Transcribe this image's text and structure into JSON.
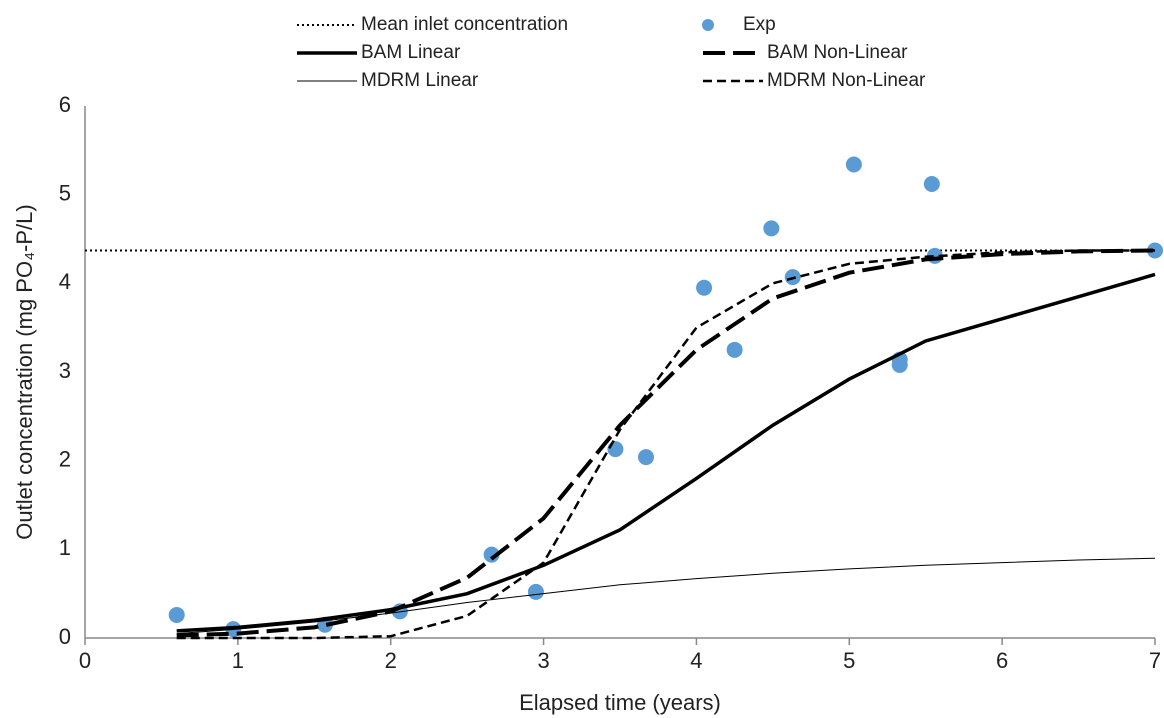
{
  "chart_data": {
    "type": "line",
    "x_label": "Elapsed time (years)",
    "y_label": "Outlet concentration (mg PO₄-P/L)",
    "xlim": [
      0,
      7
    ],
    "xticks": [
      0,
      1,
      2,
      3,
      4,
      5,
      6,
      7
    ],
    "ylim": [
      0,
      6
    ],
    "yticks": [
      0,
      1,
      2,
      3,
      4,
      5,
      6
    ],
    "grid": false,
    "legend": "top",
    "series": [
      {
        "name": "Mean inlet concentration",
        "color": "#000000",
        "dash": "dotted",
        "line_width": 2,
        "x": [
          0,
          7
        ],
        "values": [
          4.37,
          4.37
        ]
      },
      {
        "name": "Exp",
        "color": "#5b9bd5",
        "marker": "circle",
        "x": [
          0.6,
          0.97,
          1.57,
          2.06,
          2.66,
          2.95,
          3.47,
          3.67,
          4.05,
          4.25,
          4.49,
          4.63,
          5.03,
          5.33,
          5.33,
          5.54,
          5.56,
          7.0
        ],
        "values": [
          0.26,
          0.1,
          0.15,
          0.3,
          0.94,
          0.52,
          2.13,
          2.04,
          3.95,
          3.25,
          4.62,
          4.07,
          5.34,
          3.14,
          3.08,
          5.12,
          4.31,
          4.37
        ]
      },
      {
        "name": "BAM Linear",
        "color": "#000000",
        "dash": "solid",
        "line_width": 3.5,
        "x": [
          0.6,
          1,
          1.5,
          2,
          2.5,
          3,
          3.5,
          4,
          4.5,
          5,
          5.5,
          6,
          6.5,
          7
        ],
        "values": [
          0.08,
          0.12,
          0.2,
          0.32,
          0.5,
          0.82,
          1.22,
          1.8,
          2.4,
          2.92,
          3.35,
          3.6,
          3.85,
          4.1
        ]
      },
      {
        "name": "BAM Non-Linear",
        "color": "#000000",
        "dash": "longdash",
        "line_width": 4,
        "x": [
          0.6,
          1,
          1.5,
          2,
          2.5,
          3,
          3.5,
          4,
          4.5,
          5,
          5.5,
          6,
          6.5,
          7
        ],
        "values": [
          0.03,
          0.05,
          0.12,
          0.3,
          0.68,
          1.35,
          2.4,
          3.25,
          3.83,
          4.12,
          4.27,
          4.33,
          4.36,
          4.37
        ]
      },
      {
        "name": "MDRM Linear",
        "color": "#000000",
        "dash": "solid",
        "line_width": 1,
        "x": [
          0.6,
          1,
          1.5,
          2,
          2.5,
          3,
          3.5,
          4,
          4.5,
          5,
          5.5,
          6,
          6.5,
          7
        ],
        "values": [
          0.05,
          0.1,
          0.18,
          0.28,
          0.4,
          0.5,
          0.6,
          0.67,
          0.73,
          0.78,
          0.82,
          0.85,
          0.88,
          0.9
        ]
      },
      {
        "name": "MDRM Non-Linear",
        "color": "#000000",
        "dash": "dash",
        "line_width": 2.5,
        "x": [
          0.6,
          1,
          1.5,
          2,
          2.5,
          3,
          3.5,
          4,
          4.5,
          5,
          5.5,
          6,
          6.5,
          7
        ],
        "values": [
          0,
          0,
          0,
          0.02,
          0.25,
          0.85,
          2.35,
          3.5,
          4.0,
          4.22,
          4.3,
          4.35,
          4.37,
          4.37
        ]
      }
    ]
  }
}
